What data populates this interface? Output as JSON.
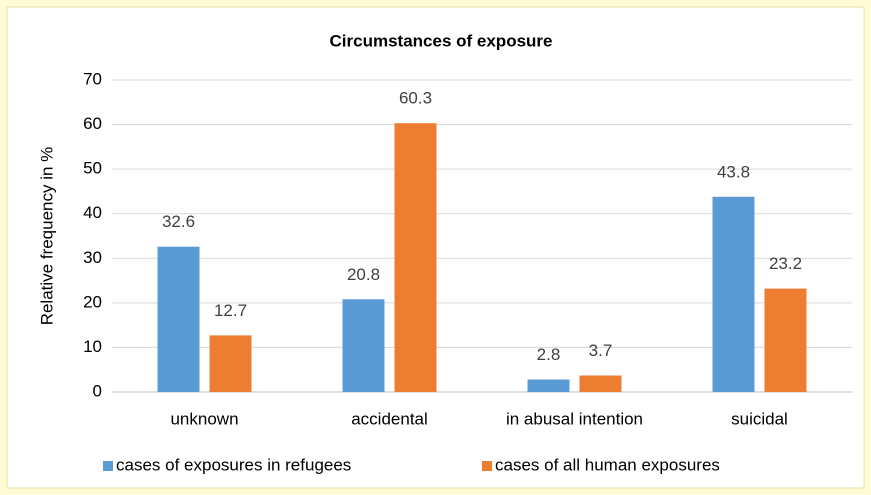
{
  "chart_data": {
    "type": "bar",
    "title": "Circumstances of exposure",
    "y_label": "Relative frequency in %",
    "categories": [
      "unknown",
      "accidental",
      "in abusal intention",
      "suicidal"
    ],
    "series": [
      {
        "name": "cases of exposures in refugees",
        "color": "#5b9bd5",
        "values": [
          32.6,
          20.8,
          2.8,
          43.8
        ]
      },
      {
        "name": "cases of all human exposures",
        "color": "#ed7d31",
        "values": [
          12.7,
          60.3,
          3.7,
          23.2
        ]
      }
    ],
    "ylim": [
      0,
      70
    ],
    "yticks": [
      0,
      10,
      20,
      30,
      40,
      50,
      60,
      70
    ],
    "grid": true,
    "legend": "bottom"
  }
}
